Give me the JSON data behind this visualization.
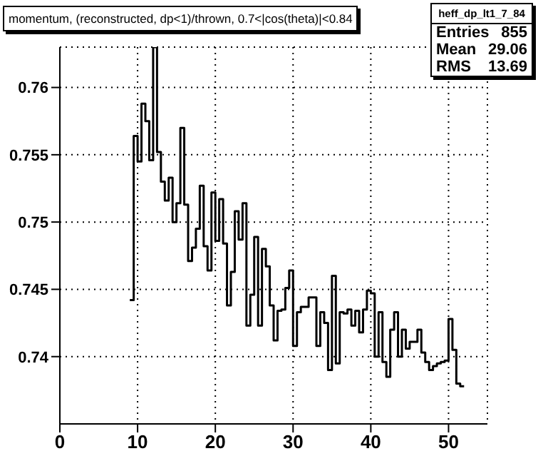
{
  "chart_data": {
    "type": "histogram",
    "title": "momentum, (reconstructed, dp<1)/thrown, 0.7<|cos(theta)|<0.84",
    "bins": [
      9.0,
      9.5,
      10.0,
      10.5,
      11.0,
      11.5,
      12.0,
      12.5,
      13.0,
      13.5,
      14.0,
      14.5,
      15.0,
      15.5,
      16.0,
      16.5,
      17.0,
      17.5,
      18.0,
      18.5,
      19.0,
      19.5,
      20.0,
      20.5,
      21.0,
      21.5,
      22.0,
      22.5,
      23.0,
      23.5,
      24.0,
      24.5,
      25.0,
      25.5,
      26.0,
      26.5,
      27.0,
      27.5,
      28.0,
      28.5,
      29.0,
      29.5,
      30.0,
      30.5,
      31.0,
      31.5,
      32.0,
      32.5,
      33.0,
      33.5,
      34.0,
      34.5,
      35.0,
      35.5,
      36.0,
      36.5,
      37.0,
      37.5,
      38.0,
      38.5,
      39.0,
      39.5,
      40.0,
      40.5,
      41.0,
      41.5,
      42.0,
      42.5,
      43.0,
      43.5,
      44.0,
      44.5,
      45.0,
      45.5,
      46.0,
      46.5,
      47.0,
      47.5,
      48.0,
      48.5,
      49.0,
      49.5,
      50.0,
      50.5,
      51.0,
      51.5,
      52.0
    ],
    "values": [
      0.7442,
      0.7564,
      0.7545,
      0.7588,
      0.7575,
      0.7546,
      0.763,
      0.7552,
      0.753,
      0.7516,
      0.7533,
      0.75,
      0.7514,
      0.757,
      0.7513,
      0.7471,
      0.7481,
      0.7495,
      0.7527,
      0.7482,
      0.7464,
      0.7522,
      0.7486,
      0.7517,
      0.7484,
      0.7438,
      0.7463,
      0.7508,
      0.7487,
      0.7514,
      0.7423,
      0.7446,
      0.7489,
      0.7423,
      0.748,
      0.7467,
      0.7438,
      0.7412,
      0.7434,
      0.7435,
      0.7451,
      0.7464,
      0.7408,
      0.7433,
      0.7437,
      0.7437,
      0.7444,
      0.7444,
      0.7408,
      0.7433,
      0.7425,
      0.739,
      0.746,
      0.7395,
      0.7433,
      0.7432,
      0.7435,
      0.7423,
      0.7434,
      0.7418,
      0.7435,
      0.7449,
      0.7447,
      0.74,
      0.7433,
      0.7396,
      0.7385,
      0.742,
      0.7433,
      0.74,
      0.742,
      0.7406,
      0.7411,
      0.7411,
      0.742,
      0.7403,
      0.7396,
      0.739,
      0.7393,
      0.7395,
      0.7396,
      0.7397,
      0.7428,
      0.7405,
      0.738,
      0.7378
    ],
    "color": "#000000",
    "xlim": [
      0,
      55
    ],
    "xticks": [
      0,
      10,
      20,
      30,
      40,
      50
    ],
    "ylim": [
      0.735,
      0.763
    ],
    "yticks": [
      0.74,
      0.745,
      0.75,
      0.755,
      0.76
    ],
    "grid": true,
    "annotations": [
      "heff_dp_lt1_7_84",
      "Entries  855",
      "Mean   29.06",
      "RMS    13.69"
    ]
  }
}
